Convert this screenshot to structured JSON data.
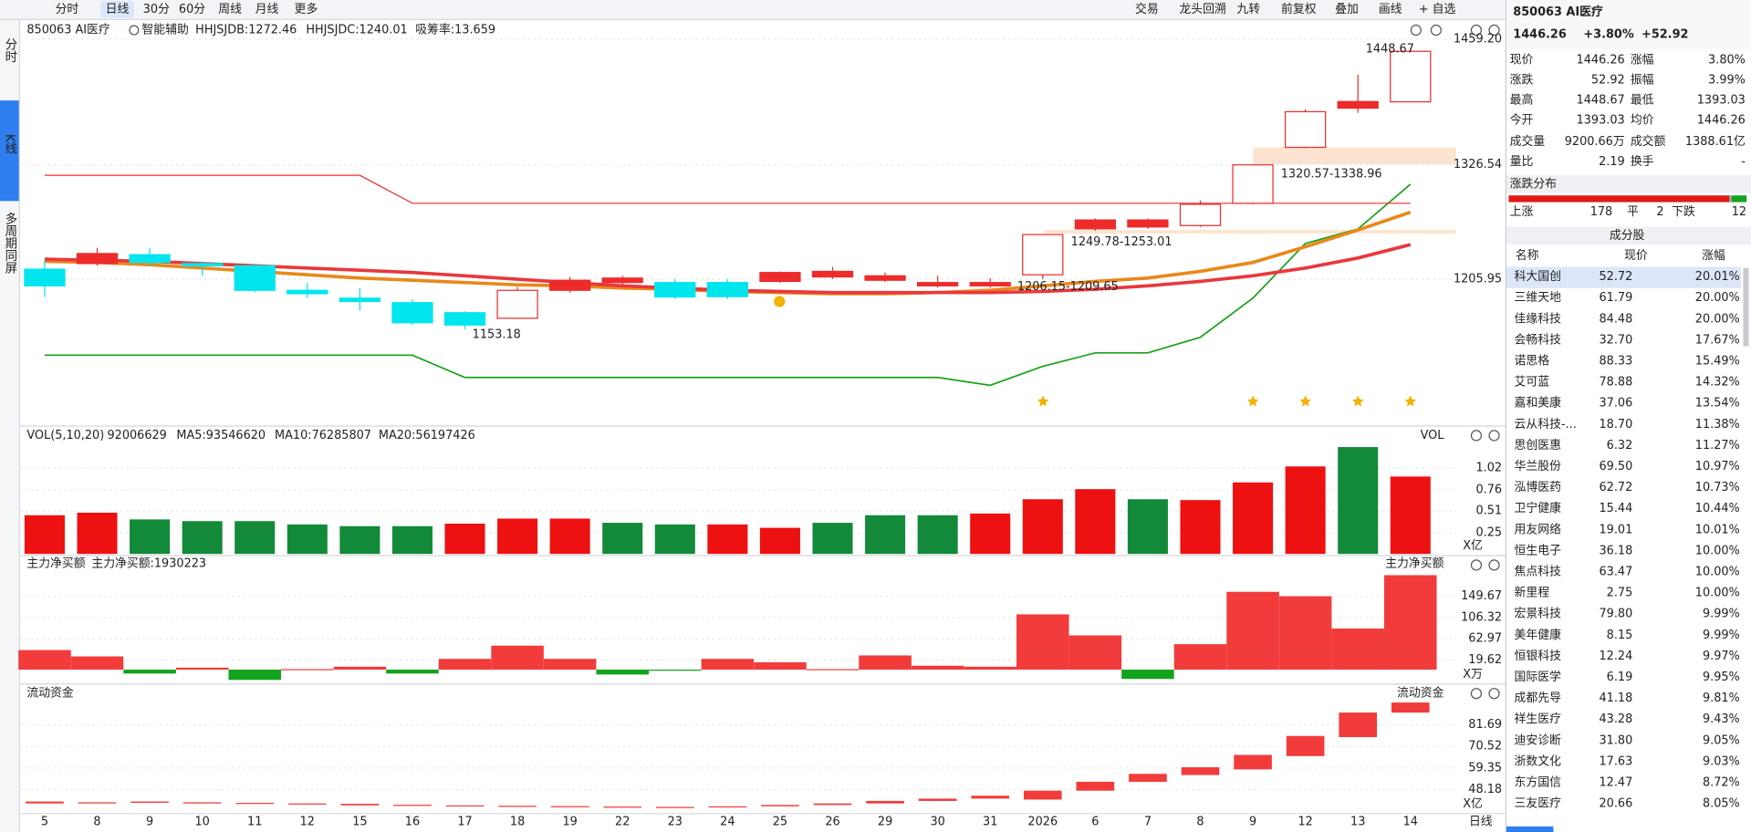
{
  "toolbar": {
    "tabs": [
      "分时",
      "日线",
      "30分",
      "60分",
      "周线",
      "月线",
      "更多"
    ],
    "selected_tab": 1,
    "tools": [
      "交易",
      "龙头回溯",
      "九转",
      "前复权",
      "叠加",
      "画线",
      "+ 自选"
    ]
  },
  "side_tabs": [
    "分时",
    "K线",
    "多周期同屏"
  ],
  "chart_data": [
    {
      "type": "candlestick",
      "title": "850063 AI医疗",
      "indicator": "智能辅助",
      "legend": [
        {
          "text": "HHJSJDB:1272.46",
          "color": "#e08a00"
        },
        {
          "text": "HHJSJDC:1240.01",
          "color": "#e83030"
        },
        {
          "text": "吸筹率:13.659",
          "color": "#e08a00"
        }
      ],
      "x": [
        "5",
        "8",
        "9",
        "10",
        "11",
        "12",
        "15",
        "16",
        "17",
        "18",
        "19",
        "22",
        "23",
        "24",
        "25",
        "26",
        "29",
        "30",
        "31",
        "2026",
        "6",
        "7",
        "8",
        "9",
        "12",
        "13",
        "14"
      ],
      "open": [
        1216.5,
        1222.4,
        1231.8,
        1222.4,
        1220.1,
        1194.2,
        1185.9,
        1181.2,
        1170.6,
        1164.7,
        1194.2,
        1202.4,
        1202.4,
        1202.4,
        1203.6,
        1208.3,
        1204.8,
        1198.9,
        1198.9,
        1210.6,
        1259.0,
        1261.0,
        1262.5,
        1286.0,
        1345.0,
        1386.3,
        1393.03
      ],
      "high": [
        1226.0,
        1238.9,
        1238.9,
        1224.8,
        1222.4,
        1202.4,
        1196.5,
        1184.7,
        1172.0,
        1197.7,
        1208.3,
        1209.5,
        1206.0,
        1206.0,
        1214.0,
        1218.9,
        1213.0,
        1209.5,
        1207.0,
        1253.0,
        1270.0,
        1270.0,
        1289.0,
        1327.0,
        1385.0,
        1421.5,
        1448.67
      ],
      "low": [
        1187.1,
        1220.1,
        1220.1,
        1209.5,
        1192.0,
        1185.9,
        1172.9,
        1157.6,
        1153.18,
        1164.7,
        1191.8,
        1200.0,
        1185.0,
        1185.0,
        1202.0,
        1206.0,
        1203.0,
        1197.0,
        1197.0,
        1206.0,
        1257.0,
        1259.0,
        1261.0,
        1285.0,
        1344.0,
        1381.4,
        1393.03
      ],
      "close": [
        1198.9,
        1233.0,
        1223.6,
        1220.0,
        1194.2,
        1190.6,
        1182.4,
        1160.0,
        1157.6,
        1194.2,
        1204.8,
        1207.1,
        1187.1,
        1187.5,
        1213.0,
        1214.2,
        1209.5,
        1202.4,
        1202.4,
        1253.0,
        1268.4,
        1268.4,
        1284.9,
        1326.5,
        1382.6,
        1393.34,
        1446.26
      ],
      "up_color": "#ee2b2b",
      "down_color": "#00e5ee",
      "series": [
        {
          "color": "#1aa31a",
          "width": 1.4,
          "values": [
            1125.8,
            1125.8,
            1125.8,
            1125.8,
            1125.8,
            1125.8,
            1125.8,
            1125.8,
            1102.3,
            1102.3,
            1102.3,
            1102.3,
            1102.3,
            1102.3,
            1102.3,
            1102.3,
            1102.3,
            1102.3,
            1094.0,
            1114.0,
            1128.2,
            1128.2,
            1144.7,
            1185.9,
            1243.6,
            1258.9,
            1306.1
          ]
        },
        {
          "color": "#e83030",
          "width": 1,
          "values": [
            1315.5,
            1315.5,
            1315.5,
            1315.5,
            1315.5,
            1315.5,
            1315.5,
            1286.0,
            1286.0,
            1286.0,
            1286.0,
            1286.0,
            1286.0,
            1286.0,
            1286.0,
            1286.0,
            1286.0,
            1286.0,
            1286.0,
            1286.0,
            1286.0,
            1286.0,
            1286.0,
            1286.0,
            1286.0,
            1286.0,
            1286.0
          ]
        },
        {
          "color": "#e8891a",
          "width": 3,
          "values": [
            1224.8,
            1223.6,
            1221.2,
            1217.7,
            1214.2,
            1210.6,
            1207.1,
            1204.8,
            1202.4,
            1200.0,
            1198.9,
            1196.5,
            1195.3,
            1193.0,
            1191.8,
            1190.6,
            1190.6,
            1191.8,
            1194.2,
            1198.9,
            1203.6,
            1207.1,
            1214.2,
            1223.6,
            1240.1,
            1257.8,
            1276.6
          ]
        },
        {
          "color": "#e8383d",
          "width": 3,
          "values": [
            1227.1,
            1225.9,
            1224.8,
            1222.4,
            1220.1,
            1217.7,
            1215.4,
            1213.0,
            1209.5,
            1205.9,
            1202.4,
            1198.9,
            1196.5,
            1194.2,
            1193.0,
            1191.8,
            1191.8,
            1191.8,
            1191.8,
            1193.0,
            1195.3,
            1198.9,
            1203.6,
            1209.5,
            1217.7,
            1228.3,
            1242.4
          ]
        }
      ],
      "annotations": [
        "1448.67",
        "1320.57-1338.96",
        "1249.78-1253.01",
        "1206.15-1209.65",
        "1153.18"
      ],
      "ylim": [
        1052.8,
        1479.2
      ],
      "yticks": [
        {
          "value": 1459.2,
          "label": "1459.20"
        },
        1326.54,
        1205.95
      ]
    },
    {
      "type": "bar",
      "title": "VOL(5,10,20)",
      "legend": [
        {
          "text": "92006629",
          "color": "#222222"
        },
        {
          "text": "MA5:93546620",
          "color": "#e08a00"
        },
        {
          "text": "MA10:76285807",
          "color": "#e020e0"
        },
        {
          "text": "MA20:56197426",
          "color": "#1aa31a"
        }
      ],
      "label": "VOL",
      "unit": "X亿",
      "values": [
        0.46,
        0.49,
        0.41,
        0.39,
        0.39,
        0.35,
        0.33,
        0.33,
        0.36,
        0.42,
        0.42,
        0.37,
        0.35,
        0.35,
        0.31,
        0.37,
        0.46,
        0.46,
        0.48,
        0.65,
        0.77,
        0.65,
        0.64,
        0.85,
        1.04,
        1.27,
        0.92
      ],
      "colors": [
        "#ee1111",
        "#ee1111",
        "#128a3a",
        "#128a3a",
        "#128a3a",
        "#128a3a",
        "#128a3a",
        "#128a3a",
        "#ee1111",
        "#ee1111",
        "#ee1111",
        "#128a3a",
        "#128a3a",
        "#ee1111",
        "#ee1111",
        "#128a3a",
        "#128a3a",
        "#128a3a",
        "#ee1111",
        "#ee1111",
        "#ee1111",
        "#128a3a",
        "#ee1111",
        "#ee1111",
        "#ee1111",
        "#128a3a",
        "#ee1111"
      ],
      "ylim": [
        0,
        1.5
      ],
      "yticks": [
        0.25,
        0.51,
        0.76,
        1.02
      ]
    },
    {
      "type": "bar",
      "title": "主力净买额",
      "legend": [
        {
          "text": "主力净买额:1930223",
          "color": "#e83030"
        }
      ],
      "label": "主力净买额",
      "unit": "X万",
      "values": [
        40,
        27,
        -8,
        4,
        -21,
        1,
        6,
        -8,
        22,
        49,
        22,
        -10,
        -1,
        22,
        15,
        1,
        29,
        8,
        6,
        113,
        70,
        -19,
        52,
        159,
        150,
        84,
        193.02
      ],
      "up_color": "#f23b3b",
      "down_color": "#12a41c",
      "ylim": [
        -28.3,
        197.7
      ],
      "yticks": [
        19.62,
        62.97,
        106.32,
        149.67
      ]
    },
    {
      "type": "floating-bar",
      "title": "流动资金",
      "label": "流动资金",
      "unit": "X亿",
      "from": [
        41,
        41,
        41.3,
        41,
        40.8,
        40.5,
        40,
        39.8,
        39.6,
        39.4,
        39.2,
        39,
        38.9,
        39,
        39.5,
        40.2,
        41,
        42.3,
        43.5,
        43.0,
        47.6,
        52.2,
        55.7,
        58.6,
        65.5,
        75.3,
        88.0
      ],
      "to": [
        42,
        41.6,
        42,
        41.6,
        41.3,
        41,
        40.8,
        40.3,
        40,
        39.8,
        39.6,
        39.4,
        39.2,
        39.5,
        40.2,
        41,
        42.3,
        43.5,
        45,
        47.6,
        52.2,
        56.3,
        59.7,
        66.1,
        75.9,
        88.0,
        93.2
      ],
      "color": "#f23b3b",
      "ylim": [
        36.05,
        95.55
      ],
      "yticks": [
        48.18,
        59.35,
        70.52,
        81.69
      ]
    }
  ],
  "period_label": "日线",
  "sidebar": {
    "title": "850063 AI医疗",
    "price": "1446.26",
    "change_pct": "+3.80%",
    "change": "+52.92",
    "quote": [
      [
        "现价",
        "1446.26",
        "涨幅",
        "3.80%"
      ],
      [
        "涨跌",
        "52.92",
        "振幅",
        "3.99%"
      ],
      [
        "最高",
        "1448.67",
        "最低",
        "1393.03"
      ],
      [
        "今开",
        "1393.03",
        "均价",
        "1446.26"
      ],
      [
        "成交量",
        "9200.66万",
        "成交额",
        "1388.61亿"
      ],
      [
        "量比",
        "2.19",
        "换手",
        "-"
      ]
    ],
    "quote_colors": [
      [
        "#e32020",
        "#e32020"
      ],
      [
        "#e32020",
        "#222222"
      ],
      [
        "#e32020",
        "#12a41c"
      ],
      [
        "#12a41c",
        "#e32020"
      ],
      [
        "#222222",
        "#222222"
      ],
      [
        "#222222",
        "#222222"
      ]
    ],
    "distribution": {
      "title": "涨跌分布",
      "up_label": "上涨",
      "up": 178,
      "flat_label": "平",
      "flat": 2,
      "down_label": "下跌",
      "down": 12
    },
    "constituents": {
      "title": "成分股",
      "columns": [
        "名称",
        "现价",
        "涨幅"
      ],
      "rows": [
        {
          "name": "科大国创",
          "price": "52.72",
          "change": "20.01%"
        },
        {
          "name": "三维天地",
          "price": "61.79",
          "change": "20.00%"
        },
        {
          "name": "佳缘科技",
          "price": "84.48",
          "change": "20.00%",
          "name_color": "#1a5fd6"
        },
        {
          "name": "会畅科技",
          "price": "32.70",
          "change": "17.67%"
        },
        {
          "name": "诺思格",
          "price": "88.33",
          "change": "15.49%"
        },
        {
          "name": "艾可蓝",
          "price": "78.88",
          "change": "14.32%"
        },
        {
          "name": "嘉和美康",
          "price": "37.06",
          "change": "13.54%"
        },
        {
          "name": "云从科技-...",
          "price": "18.70",
          "change": "11.38%"
        },
        {
          "name": "思创医惠",
          "price": "6.32",
          "change": "11.27%"
        },
        {
          "name": "华兰股份",
          "price": "69.50",
          "change": "10.97%"
        },
        {
          "name": "泓博医药",
          "price": "62.72",
          "change": "10.73%"
        },
        {
          "name": "卫宁健康",
          "price": "15.44",
          "change": "10.44%"
        },
        {
          "name": "用友网络",
          "price": "19.01",
          "change": "10.01%"
        },
        {
          "name": "恒生电子",
          "price": "36.18",
          "change": "10.00%"
        },
        {
          "name": "焦点科技",
          "price": "63.47",
          "change": "10.00%"
        },
        {
          "name": "新里程",
          "price": "2.75",
          "change": "10.00%"
        },
        {
          "name": "宏景科技",
          "price": "79.80",
          "change": "9.99%",
          "name_color": "#1a5fd6"
        },
        {
          "name": "美年健康",
          "price": "8.15",
          "change": "9.99%"
        },
        {
          "name": "恒银科技",
          "price": "12.24",
          "change": "9.97%"
        },
        {
          "name": "国际医学",
          "price": "6.19",
          "change": "9.95%"
        },
        {
          "name": "成都先导",
          "price": "41.18",
          "change": "9.81%"
        },
        {
          "name": "祥生医疗",
          "price": "43.28",
          "change": "9.43%"
        },
        {
          "name": "迪安诊断",
          "price": "31.80",
          "change": "9.05%"
        },
        {
          "name": "浙数文化",
          "price": "17.63",
          "change": "9.03%"
        },
        {
          "name": "东方国信",
          "price": "12.47",
          "change": "8.72%"
        },
        {
          "name": "三友医疗",
          "price": "20.66",
          "change": "8.05%"
        }
      ]
    }
  }
}
